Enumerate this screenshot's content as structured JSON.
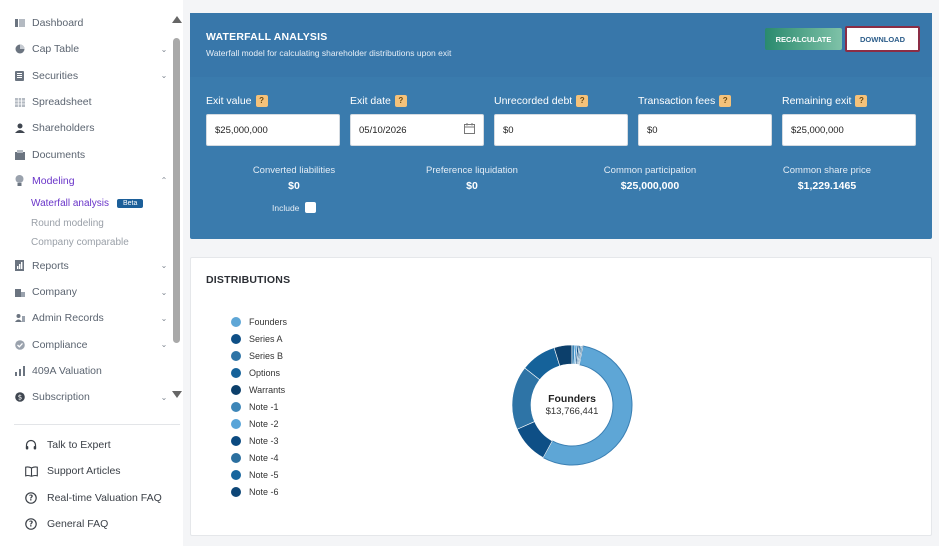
{
  "sidebar": {
    "items": [
      {
        "label": "Dashboard",
        "icon": "dashboard-icon",
        "chevron": false
      },
      {
        "label": "Cap Table",
        "icon": "pie-chart-icon",
        "chevron": true
      },
      {
        "label": "Securities",
        "icon": "clipboard-icon",
        "chevron": true
      },
      {
        "label": "Spreadsheet",
        "icon": "spreadsheet-icon",
        "chevron": false
      },
      {
        "label": "Shareholders",
        "icon": "user-icon",
        "chevron": false
      },
      {
        "label": "Documents",
        "icon": "documents-icon",
        "chevron": false
      },
      {
        "label": "Modeling",
        "icon": "lightbulb-icon",
        "chevron": true
      },
      {
        "label": "Reports",
        "icon": "reports-icon",
        "chevron": true
      },
      {
        "label": "Company",
        "icon": "company-icon",
        "chevron": true
      },
      {
        "label": "Admin Records",
        "icon": "admin-records-icon",
        "chevron": true
      },
      {
        "label": "Compliance",
        "icon": "compliance-icon",
        "chevron": true
      },
      {
        "label": "409A Valuation",
        "icon": "valuation-icon",
        "chevron": false
      },
      {
        "label": "Subscription",
        "icon": "subscription-icon",
        "chevron": true
      }
    ],
    "modeling_sub": [
      {
        "label": "Waterfall analysis",
        "badge": "Beta"
      },
      {
        "label": "Round modeling"
      },
      {
        "label": "Company comparable"
      }
    ],
    "help": [
      {
        "label": "Talk to Expert",
        "icon": "headset-icon"
      },
      {
        "label": "Support Articles",
        "icon": "book-icon"
      },
      {
        "label": "Real-time Valuation FAQ",
        "icon": "question-circle-icon"
      },
      {
        "label": "General FAQ",
        "icon": "question-circle-icon"
      }
    ]
  },
  "waterfall": {
    "title": "WATERFALL ANALYSIS",
    "subtitle": "Waterfall model for calculating shareholder distributions upon exit",
    "recalculate_label": "RECALCULATE",
    "download_label": "DOWNLOAD",
    "help_glyph": "?",
    "fields": [
      {
        "label": "Exit value",
        "value": "$25,000,000"
      },
      {
        "label": "Exit date",
        "value": "05/10/2026"
      },
      {
        "label": "Unrecorded debt",
        "value": "$0"
      },
      {
        "label": "Transaction fees",
        "value": "$0"
      },
      {
        "label": "Remaining exit",
        "value": "$25,000,000"
      }
    ],
    "stats": [
      {
        "label": "Converted liabilities",
        "value": "$0"
      },
      {
        "label": "Preference liquidation",
        "value": "$0"
      },
      {
        "label": "Common participation",
        "value": "$25,000,000"
      },
      {
        "label": "Common share price",
        "value": "$1,229.1465"
      }
    ],
    "include_label": "Include"
  },
  "distributions": {
    "title": "DISTRIBUTIONS",
    "legend": [
      {
        "name": "Founders",
        "color": "#5ea6d6"
      },
      {
        "name": "Series A",
        "color": "#0e4f86"
      },
      {
        "name": "Series B",
        "color": "#2e74a6"
      },
      {
        "name": "Options",
        "color": "#15629a"
      },
      {
        "name": "Warrants",
        "color": "#0c3f6b"
      },
      {
        "name": "Note -1",
        "color": "#3d86b8"
      },
      {
        "name": "Note -2",
        "color": "#58a4d8"
      },
      {
        "name": "Note -3",
        "color": "#0b4a80"
      },
      {
        "name": "Note -4",
        "color": "#2b6f9f"
      },
      {
        "name": "Note -5",
        "color": "#17659d"
      },
      {
        "name": "Note -6",
        "color": "#0d4677"
      }
    ],
    "center_label": "Founders",
    "center_value": "$13,766,441"
  },
  "chart_data": {
    "type": "pie",
    "categories": [
      "Founders",
      "Series A",
      "Series B",
      "Options",
      "Warrants",
      "Note -1",
      "Note -2",
      "Note -3",
      "Note -4",
      "Note -5",
      "Note -6"
    ],
    "values": [
      13766441,
      2600000,
      4300000,
      2400000,
      1200000,
      200000,
      150000,
      120000,
      100000,
      90000,
      73559
    ],
    "colors": [
      "#5ea6d6",
      "#0e4f86",
      "#2e74a6",
      "#15629a",
      "#0c3f6b",
      "#3d86b8",
      "#58a4d8",
      "#0b4a80",
      "#2b6f9f",
      "#17659d",
      "#0d4677"
    ],
    "title": "DISTRIBUTIONS",
    "donut": true,
    "legend": "left"
  }
}
